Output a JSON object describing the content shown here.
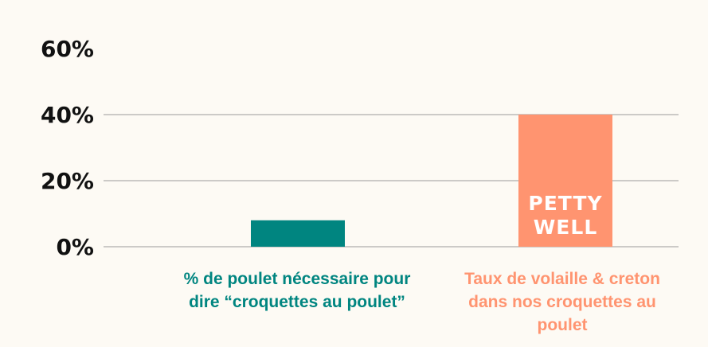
{
  "chart_data": {
    "type": "bar",
    "categories": [
      "% de poulet nécessaire pour dire “croquettes au poulet”",
      "Taux de volaille & creton dans nos croquettes au poulet"
    ],
    "values": [
      8,
      40
    ],
    "colors": [
      "#008580",
      "#ff9470"
    ],
    "yticks": [
      "0%",
      "20%",
      "40%",
      "60%"
    ],
    "ytick_values": [
      0,
      20,
      40,
      60
    ],
    "ylim": [
      0,
      60
    ],
    "grid": true,
    "title": "",
    "xlabel": "",
    "ylabel": ""
  },
  "logo": {
    "line1": "PETTY",
    "line2": "WELL",
    "color": "#ffffff"
  },
  "colors": {
    "background": "#fdfaf4",
    "grid": "#9a9a9a",
    "text": "#111111"
  }
}
